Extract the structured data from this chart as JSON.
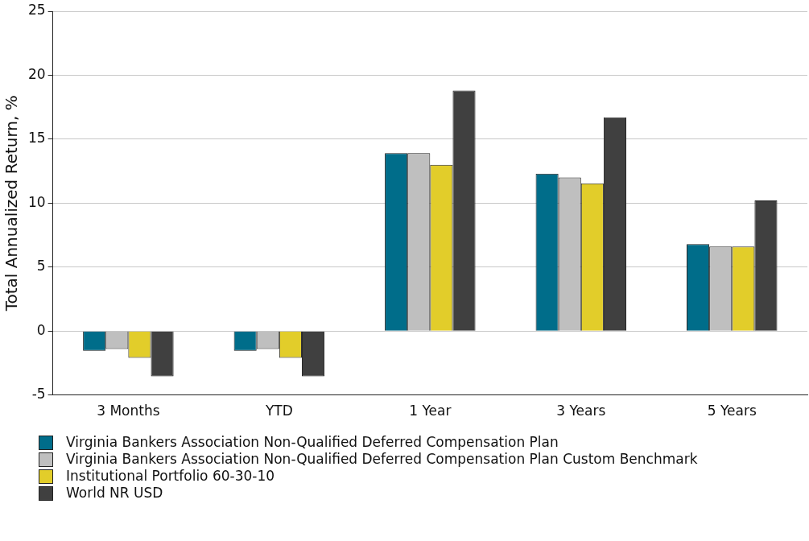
{
  "chart_data": {
    "type": "bar",
    "ylabel": "Total Annualized Return, %",
    "categories": [
      "3 Months",
      "YTD",
      "1 Year",
      "3 Years",
      "5 Years"
    ],
    "series": [
      {
        "name": "Virginia Bankers Association Non-Qualified Deferred Compensation Plan",
        "color": "#006d8a",
        "values": [
          -1.55,
          -1.55,
          13.9,
          12.3,
          6.8
        ]
      },
      {
        "name": "Virginia Bankers Association Non-Qualified Deferred Compensation Plan Custom Benchmark",
        "color": "#bfbfbf",
        "values": [
          -1.4,
          -1.4,
          13.9,
          12.0,
          6.6
        ]
      },
      {
        "name": "Institutional Portfolio 60-30-10",
        "color": "#e2cd2a",
        "values": [
          -2.1,
          -2.1,
          13.0,
          11.55,
          6.6
        ]
      },
      {
        "name": "World NR USD",
        "color": "#404040",
        "values": [
          -3.55,
          -3.55,
          18.8,
          16.7,
          10.2
        ]
      }
    ],
    "ylim": [
      -5,
      25
    ],
    "yticks": [
      -5,
      0,
      5,
      10,
      15,
      20,
      25
    ],
    "grid": "y",
    "legend": "bottom"
  }
}
